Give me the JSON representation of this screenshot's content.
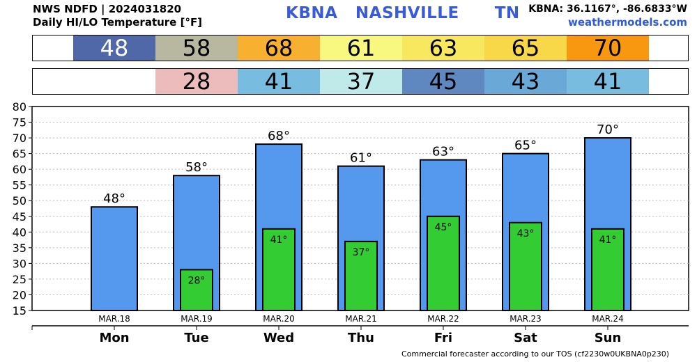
{
  "header": {
    "line1": "NWS NDFD | 2024031820",
    "line2": "Daily HI/LO Temperature [°F]",
    "station_title": "KBNA   NASHVILLE      TN",
    "coords": "KBNA: 36.1167°, -86.6833°W",
    "site": "weathermodels.com"
  },
  "hi_strip": [
    {
      "value": "48",
      "color": "#5068a8"
    },
    {
      "value": "58",
      "color": "#b8b8a0"
    },
    {
      "value": "68",
      "color": "#f8b030"
    },
    {
      "value": "61",
      "color": "#f8f880"
    },
    {
      "value": "63",
      "color": "#f8e860"
    },
    {
      "value": "65",
      "color": "#f8d848"
    },
    {
      "value": "70",
      "color": "#f89810"
    }
  ],
  "lo_strip": [
    {
      "value": "",
      "color": "#ffffff"
    },
    {
      "value": "28",
      "color": "#ecbcbc"
    },
    {
      "value": "41",
      "color": "#78bce0"
    },
    {
      "value": "37",
      "color": "#c0eaea"
    },
    {
      "value": "45",
      "color": "#6088c0"
    },
    {
      "value": "43",
      "color": "#6aa8d8"
    },
    {
      "value": "41",
      "color": "#78bce0"
    }
  ],
  "chart_data": {
    "type": "bar",
    "categories": [
      "Mon",
      "Tue",
      "Wed",
      "Thu",
      "Fri",
      "Sat",
      "Sun"
    ],
    "dates": [
      "MAR.18",
      "MAR.19",
      "MAR.20",
      "MAR.21",
      "MAR.22",
      "MAR.23",
      "MAR.24"
    ],
    "series": [
      {
        "values": [
          48,
          58,
          68,
          61,
          63,
          65,
          70
        ],
        "color": "#5599ee"
      },
      {
        "values": [
          null,
          28,
          41,
          37,
          45,
          43,
          41
        ],
        "color": "#33cc33"
      }
    ],
    "hi_labels": [
      "48°",
      "58°",
      "68°",
      "61°",
      "63°",
      "65°",
      "70°"
    ],
    "lo_labels": [
      "",
      "28°",
      "41°",
      "37°",
      "45°",
      "43°",
      "41°"
    ],
    "yticks": [
      "15",
      "20",
      "25",
      "30",
      "35",
      "40",
      "45",
      "50",
      "55",
      "60",
      "65",
      "70",
      "75",
      "80"
    ],
    "ylim": [
      15,
      80
    ],
    "grid": true
  },
  "footer": "Commercial forecaster according to our TOS (cf2230w0UKBNA0p230)"
}
